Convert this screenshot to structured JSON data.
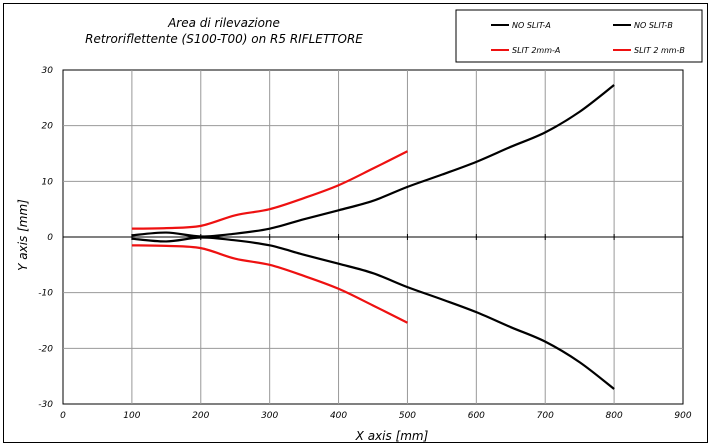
{
  "chart_data": {
    "type": "line",
    "title_lines": [
      "Area di rilevazione",
      "Retroriflettente (S100-T00) on R5 RIFLETTORE"
    ],
    "xlabel": "X axis [mm]",
    "ylabel": "Y axis [mm]",
    "xlim": [
      0,
      900
    ],
    "ylim": [
      -30,
      30
    ],
    "xticks": [
      "0",
      "100",
      "200",
      "300",
      "400",
      "500",
      "600",
      "700",
      "800",
      "900"
    ],
    "yticks": [
      "30",
      "20",
      "10",
      "0",
      "-10",
      "-20",
      "-30"
    ],
    "grid": true,
    "legend_position": "top-right",
    "series": [
      {
        "name": "NO SLIT-A",
        "color": "#000000",
        "x": [
          100,
          150,
          200,
          250,
          300,
          350,
          400,
          450,
          500,
          550,
          600,
          650,
          700,
          750,
          800
        ],
        "y": [
          0.3,
          0.8,
          0.1,
          0.6,
          1.5,
          3.2,
          4.8,
          6.5,
          9.0,
          11.2,
          13.5,
          16.2,
          18.8,
          22.5,
          27.3
        ]
      },
      {
        "name": "NO SLIT-B",
        "color": "#000000",
        "x": [
          100,
          150,
          200,
          250,
          300,
          350,
          400,
          450,
          500,
          550,
          600,
          650,
          700,
          750,
          800
        ],
        "y": [
          -0.3,
          -0.8,
          -0.1,
          -0.6,
          -1.5,
          -3.2,
          -4.8,
          -6.5,
          -9.0,
          -11.2,
          -13.5,
          -16.2,
          -18.8,
          -22.5,
          -27.3
        ]
      },
      {
        "name": "SLIT 2mm-A",
        "color": "#ee1111",
        "x": [
          100,
          150,
          200,
          250,
          300,
          350,
          400,
          450,
          500
        ],
        "y": [
          1.5,
          1.6,
          2.0,
          3.9,
          5.0,
          7.0,
          9.3,
          12.3,
          15.4
        ]
      },
      {
        "name": "SLIT 2 mm-B",
        "color": "#ee1111",
        "x": [
          100,
          150,
          200,
          250,
          300,
          350,
          400,
          450,
          500
        ],
        "y": [
          -1.5,
          -1.6,
          -2.0,
          -3.9,
          -5.0,
          -7.0,
          -9.3,
          -12.3,
          -15.4
        ]
      }
    ]
  }
}
